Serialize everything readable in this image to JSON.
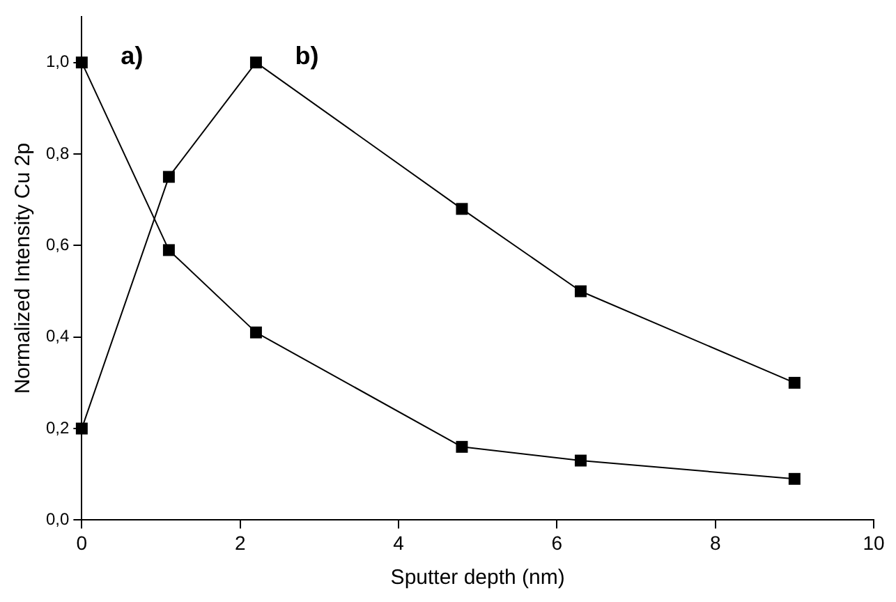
{
  "chart_data": {
    "type": "line",
    "xlabel": "Sputter depth (nm)",
    "ylabel": "Normalized Intensity Cu 2p",
    "x": [
      0,
      1.1,
      2.2,
      4.8,
      6.3,
      9
    ],
    "series": [
      {
        "name": "a)",
        "color": "#000000",
        "values": [
          1.0,
          0.59,
          0.41,
          0.16,
          0.13,
          0.09
        ]
      },
      {
        "name": "b)",
        "color": "#000000",
        "values": [
          0.2,
          0.75,
          1.0,
          0.68,
          0.5,
          0.3
        ]
      }
    ],
    "xlim": [
      0,
      10
    ],
    "xticks": [
      0,
      2,
      4,
      6,
      8,
      10
    ],
    "ylim": [
      0,
      1.1
    ],
    "yticks": [
      {
        "value": 0,
        "label": "0,0"
      },
      {
        "value": 0.2,
        "label": "0,2"
      },
      {
        "value": 0.4,
        "label": "0,4"
      },
      {
        "value": 0.6,
        "label": "0,6"
      },
      {
        "value": 0.8,
        "label": "0,8"
      },
      {
        "value": 1.0,
        "label": "1,0"
      }
    ],
    "grid": false,
    "legend": false,
    "marker": "square",
    "line_style": "solid"
  }
}
